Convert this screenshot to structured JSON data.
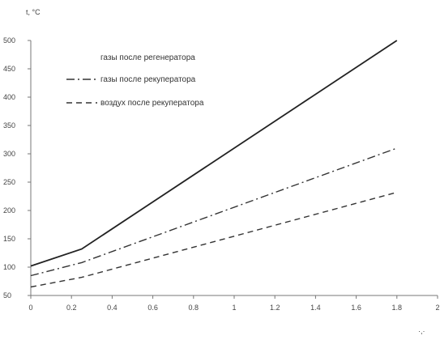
{
  "chart_data": {
    "type": "line",
    "title": "",
    "ylabel": "t, °C",
    "xlabel": "·,·",
    "xlim": [
      0,
      2.0
    ],
    "ylim": [
      50,
      500
    ],
    "x_ticks": [
      0,
      0.2,
      0.4,
      0.6,
      0.8,
      1.0,
      1.2,
      1.4,
      1.6,
      1.8,
      2.0
    ],
    "x_tick_labels": [
      "0",
      "0.2",
      "0.4",
      "0.6",
      "0.8",
      "1",
      "1.2",
      "1.4",
      "1.6",
      "1.8",
      "2"
    ],
    "y_ticks": [
      50,
      100,
      150,
      200,
      250,
      300,
      350,
      400,
      450,
      500
    ],
    "y_tick_labels": [
      "50",
      "100",
      "150",
      "200",
      "250",
      "300",
      "350",
      "400",
      "450",
      "500"
    ],
    "grid": false,
    "legend_position": "top-left",
    "legend_header": "газы после регенератора",
    "series": [
      {
        "name": "",
        "dash": "solid",
        "color": "#222222",
        "x": [
          0,
          0.25,
          1.8
        ],
        "y": [
          102,
          132,
          500
        ]
      },
      {
        "name": "газы после рекуператора",
        "dash": "dashdot",
        "color": "#333333",
        "x": [
          0,
          0.25,
          1.8
        ],
        "y": [
          85,
          108,
          310
        ]
      },
      {
        "name": "воздух после рекуператора",
        "dash": "dash",
        "color": "#333333",
        "x": [
          0,
          0.25,
          1.8
        ],
        "y": [
          65,
          82,
          232
        ]
      }
    ]
  }
}
